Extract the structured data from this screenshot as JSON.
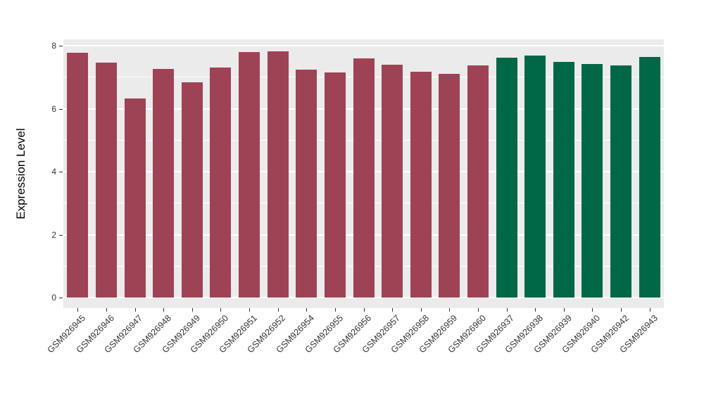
{
  "figure": {
    "background_color": "#FFFFFF",
    "panel_background_color": "#EBEBEB",
    "gridline_color": "#FFFFFF",
    "axis_text_color": "#333333",
    "tick_mark_color": "#333333"
  },
  "chart_data": {
    "type": "bar",
    "title": "",
    "xlabel": "",
    "ylabel": "Expression Level",
    "ylim": [
      0,
      8
    ],
    "yticks": [
      0,
      2,
      4,
      6,
      8
    ],
    "minor_gridlines": [
      1,
      3,
      5,
      7
    ],
    "grid": "on",
    "legend": "none",
    "bar_groups": [
      {
        "name": "maroon-group",
        "color": "#9E4355"
      },
      {
        "name": "green-group",
        "color": "#006847"
      }
    ],
    "bars": [
      {
        "label": "GSM926945",
        "value": 7.78,
        "group": 0
      },
      {
        "label": "GSM926946",
        "value": 7.46,
        "group": 0
      },
      {
        "label": "GSM926947",
        "value": 6.32,
        "group": 0
      },
      {
        "label": "GSM926948",
        "value": 7.26,
        "group": 0
      },
      {
        "label": "GSM926949",
        "value": 6.84,
        "group": 0
      },
      {
        "label": "GSM926950",
        "value": 7.31,
        "group": 0
      },
      {
        "label": "GSM926951",
        "value": 7.8,
        "group": 0
      },
      {
        "label": "GSM926952",
        "value": 7.82,
        "group": 0
      },
      {
        "label": "GSM926954",
        "value": 7.24,
        "group": 0
      },
      {
        "label": "GSM926955",
        "value": 7.15,
        "group": 0
      },
      {
        "label": "GSM926956",
        "value": 7.6,
        "group": 0
      },
      {
        "label": "GSM926957",
        "value": 7.4,
        "group": 0
      },
      {
        "label": "GSM926958",
        "value": 7.17,
        "group": 0
      },
      {
        "label": "GSM926959",
        "value": 7.11,
        "group": 0
      },
      {
        "label": "GSM926960",
        "value": 7.37,
        "group": 0
      },
      {
        "label": "GSM926937",
        "value": 7.62,
        "group": 1
      },
      {
        "label": "GSM926938",
        "value": 7.69,
        "group": 1
      },
      {
        "label": "GSM926939",
        "value": 7.49,
        "group": 1
      },
      {
        "label": "GSM926940",
        "value": 7.42,
        "group": 1
      },
      {
        "label": "GSM926942",
        "value": 7.37,
        "group": 1
      },
      {
        "label": "GSM926943",
        "value": 7.64,
        "group": 1
      }
    ]
  }
}
